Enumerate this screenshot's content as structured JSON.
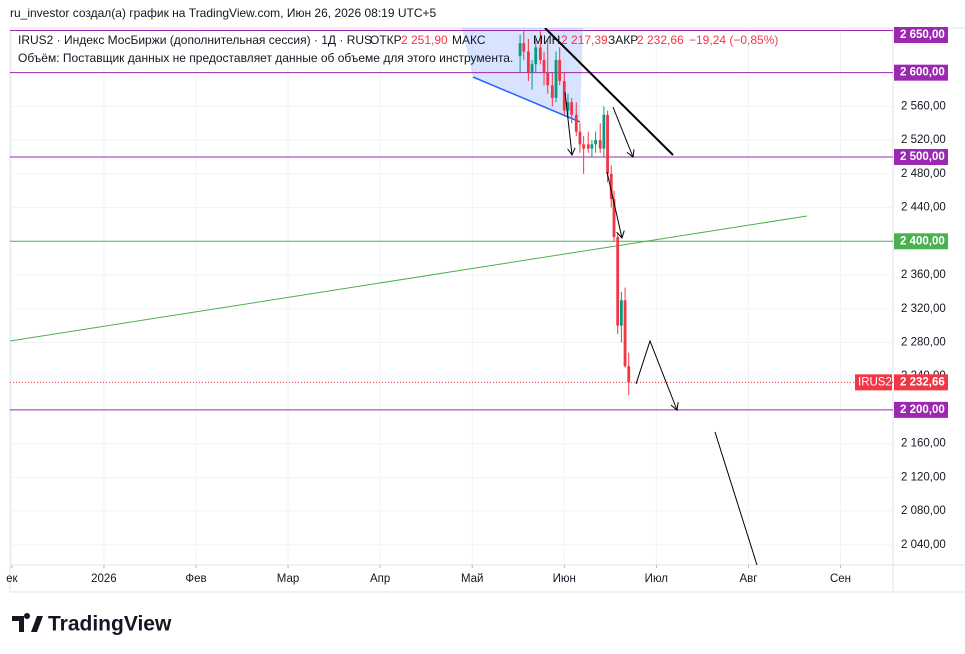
{
  "header": "ru_investor создал(а) график на TradingView.com, Июн 26, 2026 08:19 UTC+5",
  "footer": "TradingView",
  "chart_data": {
    "type": "candlestick",
    "legend": {
      "symbol": "IRUS2 · Индекс МосБиржи (дополнительная сессия) · 1Д · RUS",
      "open_label": "ОТКР",
      "open": "2 251,90",
      "high_label": "МАКС",
      "low_label": "МИН",
      "low": "2 217,39",
      "close_label": "ЗАКР",
      "close": "2 232,66",
      "change": "−19,24 (−0,85%)",
      "volume_note": "Объём: Поставщик данных не предоставляет данные об объеме для этого инструмента."
    },
    "x": [
      5.52,
      5.56,
      5.61,
      5.65,
      5.69,
      5.74,
      5.78,
      5.82,
      5.87,
      5.91,
      5.95,
      6.0,
      6.04,
      6.08,
      6.13,
      6.17,
      6.21,
      6.26,
      6.3,
      6.34,
      6.39,
      6.43,
      6.47,
      6.51,
      6.54,
      6.58,
      6.62,
      6.66,
      6.7
    ],
    "open": [
      2620,
      2635,
      2625,
      2600,
      2610,
      2630,
      2615,
      2600,
      2585,
      2570,
      2615,
      2590,
      2555,
      2565,
      2550,
      2530,
      2515,
      2515,
      2510,
      2515,
      2520,
      2510,
      2550,
      2480,
      2450,
      2405,
      2300,
      2330,
      2251.9
    ],
    "high": [
      2645,
      2650,
      2640,
      2615,
      2640,
      2650,
      2625,
      2640,
      2600,
      2625,
      2630,
      2600,
      2575,
      2570,
      2565,
      2540,
      2525,
      2530,
      2520,
      2530,
      2540,
      2560,
      2555,
      2490,
      2460,
      2410,
      2340,
      2345,
      2268
    ],
    "low": [
      2600,
      2615,
      2590,
      2580,
      2600,
      2610,
      2585,
      2575,
      2560,
      2565,
      2585,
      2550,
      2545,
      2540,
      2525,
      2505,
      2480,
      2505,
      2500,
      2505,
      2505,
      2500,
      2470,
      2440,
      2400,
      2290,
      2280,
      2250,
      2217.39
    ],
    "close": [
      2635,
      2625,
      2600,
      2610,
      2630,
      2615,
      2600,
      2585,
      2570,
      2615,
      2590,
      2555,
      2565,
      2550,
      2530,
      2515,
      2510,
      2510,
      2515,
      2520,
      2510,
      2550,
      2480,
      2450,
      2405,
      2300,
      2330,
      2251.9,
      2232.66
    ],
    "up_color": "#089981",
    "down_color": "#f23645",
    "xlim": [
      -0.02,
      9.57
    ],
    "xticks": [
      {
        "value": 0,
        "label": "ек"
      },
      {
        "value": 1,
        "label": "2026"
      },
      {
        "value": 2,
        "label": "Фев"
      },
      {
        "value": 3,
        "label": "Мар"
      },
      {
        "value": 4,
        "label": "Апр"
      },
      {
        "value": 5,
        "label": "Май"
      },
      {
        "value": 6,
        "label": "Июн"
      },
      {
        "value": 7,
        "label": "Июл"
      },
      {
        "value": 8,
        "label": "Авг"
      },
      {
        "value": 9,
        "label": "Сен"
      }
    ],
    "ylim": [
      2016,
      2653
    ],
    "yticks": [
      {
        "value": 2040,
        "label": "2 040,00"
      },
      {
        "value": 2080,
        "label": "2 080,00"
      },
      {
        "value": 2120,
        "label": "2 120,00"
      },
      {
        "value": 2160,
        "label": "2 160,00"
      },
      {
        "value": 2240,
        "label": "2 240,00"
      },
      {
        "value": 2280,
        "label": "2 280,00"
      },
      {
        "value": 2320,
        "label": "2 320,00"
      },
      {
        "value": 2360,
        "label": "2 360,00"
      },
      {
        "value": 2440,
        "label": "2 440,00"
      },
      {
        "value": 2480,
        "label": "2 480,00"
      },
      {
        "value": 2520,
        "label": "2 520,00"
      },
      {
        "value": 2560,
        "label": "2 560,00"
      }
    ],
    "grid": true,
    "levels": [
      {
        "value": 2650,
        "label": "2 650,00",
        "color": "#9c27b0"
      },
      {
        "value": 2600,
        "label": "2 600,00",
        "color": "#9c27b0"
      },
      {
        "value": 2500,
        "label": "2 500,00",
        "color": "#9c27b0"
      },
      {
        "value": 2400,
        "label": "2 400,00",
        "color": "#4caf50"
      },
      {
        "value": 2200,
        "label": "2 200,00",
        "color": "#9c27b0"
      }
    ],
    "price_tag": {
      "symbol": "IRUS2",
      "value": 2232.66,
      "label": "2 232,66",
      "color": "#f23645"
    }
  }
}
